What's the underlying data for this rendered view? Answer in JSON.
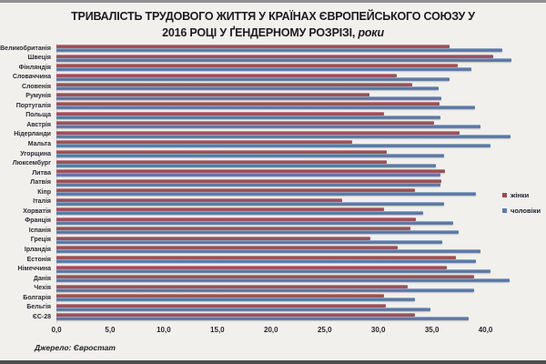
{
  "title": {
    "line1": "ТРИВАЛІСТЬ ТРУДОВОГО ЖИТТЯ У КРАЇНАХ ЄВРОПЕЙСЬКОГО СОЮЗУ У",
    "line2": "2016 РОЦІ У ҐЕНДЕРНОМУ РОЗРІЗІ,",
    "line2_italic": "роки"
  },
  "legend": {
    "items": [
      {
        "label": "жінки",
        "color": "#9c4a52"
      },
      {
        "label": "чоловіки",
        "color": "#5d7da9"
      }
    ]
  },
  "source_note": "Джерело: Євростат",
  "chart_data": {
    "type": "bar",
    "orientation": "horizontal",
    "title": "ТРИВАЛІСТЬ ТРУДОВОГО ЖИТТЯ У КРАЇНАХ ЄВРОПЕЙСЬКОГО СОЮЗУ У 2016 РОЦІ У ҐЕНДЕРНОМУ РОЗРІЗІ, роки",
    "unit": "роки",
    "categories": [
      "Великобританія",
      "Швеція",
      "Фінляндія",
      "Словаччина",
      "Словенія",
      "Румунія",
      "Португалія",
      "Польща",
      "Австрія",
      "Нідерланди",
      "Мальта",
      "Угорщина",
      "Люксембург",
      "Литва",
      "Латвія",
      "Кіпр",
      "Італія",
      "Хорватія",
      "Франція",
      "Іспанія",
      "Греція",
      "Ірландія",
      "Естонія",
      "Німеччина",
      "Данія",
      "Чехія",
      "Болгарія",
      "Бельгія",
      "ЄС-28"
    ],
    "series": [
      {
        "name": "жінки",
        "color": "#9c4a52",
        "values": [
          36.6,
          40.7,
          37.4,
          31.7,
          33.2,
          29.2,
          35.7,
          30.5,
          35.2,
          37.6,
          27.6,
          30.8,
          30.8,
          36.2,
          35.9,
          33.4,
          26.6,
          30.5,
          33.5,
          33.0,
          29.3,
          31.8,
          37.2,
          36.4,
          38.9,
          32.7,
          30.5,
          30.7,
          33.4
        ]
      },
      {
        "name": "чоловіки",
        "color": "#5d7da9",
        "values": [
          41.6,
          42.4,
          38.7,
          36.6,
          35.6,
          35.9,
          39.0,
          35.8,
          39.5,
          42.3,
          40.5,
          36.1,
          35.4,
          35.8,
          35.8,
          39.1,
          36.1,
          34.2,
          37.0,
          37.5,
          36.0,
          39.5,
          39.1,
          40.5,
          42.2,
          38.9,
          33.4,
          34.9,
          38.4
        ]
      }
    ],
    "x_ticks": {
      "values": [
        0,
        5,
        10,
        15,
        20,
        25,
        30,
        35,
        40
      ],
      "labels": [
        "0,0",
        "5,0",
        "10,0",
        "15,0",
        "20,0",
        "25,0",
        "30,0",
        "35,0",
        "40,0"
      ]
    },
    "xlim": [
      0,
      42.5
    ],
    "grid": false,
    "legend_position": "right",
    "source": "Джерело: Євростат"
  }
}
